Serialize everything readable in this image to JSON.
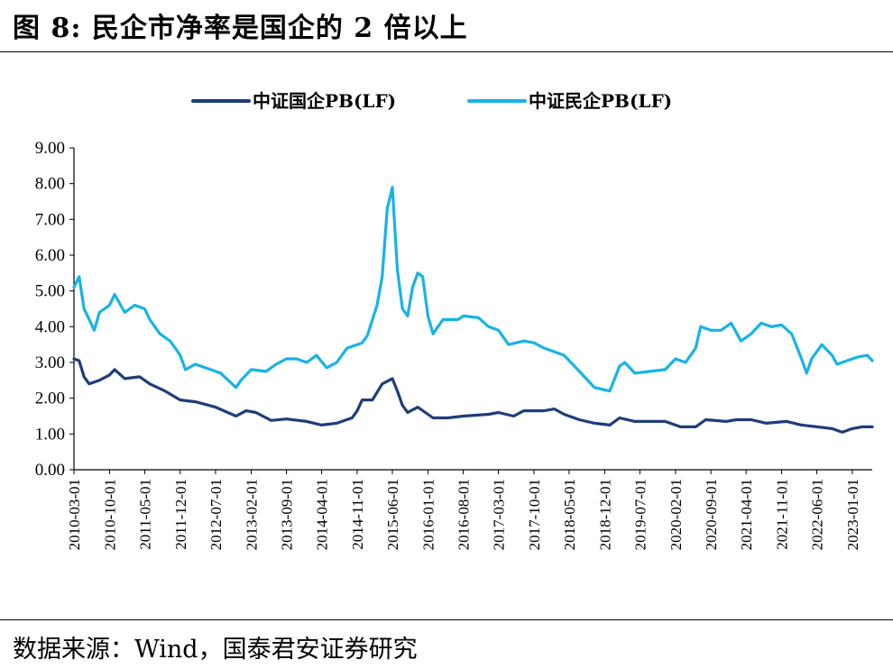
{
  "header": {
    "title": "图 8:  民企市净率是国企的 2 倍以上"
  },
  "footer": {
    "source": "数据来源：Wind，国泰君安证券研究"
  },
  "chart_data": {
    "type": "line",
    "ylim": [
      0,
      9
    ],
    "y_ticks": [
      "0.00",
      "1.00",
      "2.00",
      "3.00",
      "4.00",
      "5.00",
      "6.00",
      "7.00",
      "8.00",
      "9.00"
    ],
    "x_ticks": [
      "2010-03-01",
      "2010-10-01",
      "2011-05-01",
      "2011-12-01",
      "2012-07-01",
      "2013-02-01",
      "2013-09-01",
      "2014-04-01",
      "2014-11-01",
      "2015-06-01",
      "2016-01-01",
      "2016-08-01",
      "2017-03-01",
      "2017-10-01",
      "2018-05-01",
      "2018-12-01",
      "2019-07-01",
      "2020-02-01",
      "2020-09-01",
      "2021-04-01",
      "2021-11-01",
      "2022-06-01",
      "2023-01-01"
    ],
    "x_start": "2010-03-01",
    "x_end": "2023-05-01",
    "legend_position": "top",
    "series": [
      {
        "name": "中证国企PB(LF)",
        "color": "#1f3d7a",
        "points": [
          [
            "2010-03-01",
            3.1
          ],
          [
            "2010-04-01",
            3.05
          ],
          [
            "2010-05-01",
            2.6
          ],
          [
            "2010-06-01",
            2.4
          ],
          [
            "2010-08-01",
            2.5
          ],
          [
            "2010-10-01",
            2.65
          ],
          [
            "2010-11-01",
            2.8
          ],
          [
            "2011-01-01",
            2.55
          ],
          [
            "2011-04-01",
            2.6
          ],
          [
            "2011-06-01",
            2.4
          ],
          [
            "2011-09-01",
            2.2
          ],
          [
            "2011-12-01",
            1.95
          ],
          [
            "2012-03-01",
            1.9
          ],
          [
            "2012-07-01",
            1.75
          ],
          [
            "2012-11-01",
            1.5
          ],
          [
            "2013-01-01",
            1.65
          ],
          [
            "2013-03-01",
            1.6
          ],
          [
            "2013-06-01",
            1.38
          ],
          [
            "2013-09-01",
            1.42
          ],
          [
            "2014-01-01",
            1.35
          ],
          [
            "2014-04-01",
            1.25
          ],
          [
            "2014-07-01",
            1.3
          ],
          [
            "2014-10-01",
            1.45
          ],
          [
            "2014-11-01",
            1.65
          ],
          [
            "2014-12-01",
            1.95
          ],
          [
            "2015-02-01",
            1.95
          ],
          [
            "2015-04-01",
            2.4
          ],
          [
            "2015-06-01",
            2.55
          ],
          [
            "2015-07-01",
            2.2
          ],
          [
            "2015-08-01",
            1.8
          ],
          [
            "2015-09-01",
            1.6
          ],
          [
            "2015-11-01",
            1.75
          ],
          [
            "2016-01-01",
            1.55
          ],
          [
            "2016-02-01",
            1.45
          ],
          [
            "2016-05-01",
            1.45
          ],
          [
            "2016-08-01",
            1.5
          ],
          [
            "2017-01-01",
            1.55
          ],
          [
            "2017-03-01",
            1.6
          ],
          [
            "2017-06-01",
            1.5
          ],
          [
            "2017-08-01",
            1.65
          ],
          [
            "2017-12-01",
            1.65
          ],
          [
            "2018-02-01",
            1.7
          ],
          [
            "2018-04-01",
            1.55
          ],
          [
            "2018-07-01",
            1.4
          ],
          [
            "2018-10-01",
            1.3
          ],
          [
            "2019-01-01",
            1.25
          ],
          [
            "2019-03-01",
            1.45
          ],
          [
            "2019-06-01",
            1.35
          ],
          [
            "2019-12-01",
            1.35
          ],
          [
            "2020-03-01",
            1.2
          ],
          [
            "2020-06-01",
            1.2
          ],
          [
            "2020-08-01",
            1.4
          ],
          [
            "2020-12-01",
            1.35
          ],
          [
            "2021-02-01",
            1.4
          ],
          [
            "2021-05-01",
            1.4
          ],
          [
            "2021-08-01",
            1.3
          ],
          [
            "2021-12-01",
            1.35
          ],
          [
            "2022-03-01",
            1.25
          ],
          [
            "2022-06-01",
            1.2
          ],
          [
            "2022-09-01",
            1.15
          ],
          [
            "2022-11-01",
            1.05
          ],
          [
            "2023-01-01",
            1.15
          ],
          [
            "2023-03-01",
            1.2
          ],
          [
            "2023-05-01",
            1.2
          ]
        ]
      },
      {
        "name": "中证民企PB(LF)",
        "color": "#17b3e8",
        "points": [
          [
            "2010-03-01",
            5.1
          ],
          [
            "2010-04-01",
            5.4
          ],
          [
            "2010-05-01",
            4.5
          ],
          [
            "2010-06-01",
            4.2
          ],
          [
            "2010-07-01",
            3.9
          ],
          [
            "2010-08-01",
            4.4
          ],
          [
            "2010-10-01",
            4.6
          ],
          [
            "2010-11-01",
            4.9
          ],
          [
            "2011-01-01",
            4.4
          ],
          [
            "2011-03-01",
            4.6
          ],
          [
            "2011-05-01",
            4.5
          ],
          [
            "2011-06-01",
            4.2
          ],
          [
            "2011-08-01",
            3.8
          ],
          [
            "2011-10-01",
            3.6
          ],
          [
            "2011-12-01",
            3.2
          ],
          [
            "2012-01-01",
            2.8
          ],
          [
            "2012-03-01",
            2.95
          ],
          [
            "2012-05-01",
            2.85
          ],
          [
            "2012-08-01",
            2.7
          ],
          [
            "2012-11-01",
            2.3
          ],
          [
            "2012-12-01",
            2.5
          ],
          [
            "2013-02-01",
            2.8
          ],
          [
            "2013-05-01",
            2.75
          ],
          [
            "2013-07-01",
            2.95
          ],
          [
            "2013-09-01",
            3.1
          ],
          [
            "2013-11-01",
            3.1
          ],
          [
            "2014-01-01",
            3.0
          ],
          [
            "2014-03-01",
            3.2
          ],
          [
            "2014-05-01",
            2.85
          ],
          [
            "2014-07-01",
            3.0
          ],
          [
            "2014-09-01",
            3.4
          ],
          [
            "2014-11-01",
            3.5
          ],
          [
            "2014-12-01",
            3.55
          ],
          [
            "2015-01-01",
            3.75
          ],
          [
            "2015-03-01",
            4.6
          ],
          [
            "2015-04-01",
            5.4
          ],
          [
            "2015-05-01",
            7.3
          ],
          [
            "2015-06-01",
            7.9
          ],
          [
            "2015-07-01",
            5.6
          ],
          [
            "2015-08-01",
            4.5
          ],
          [
            "2015-09-01",
            4.3
          ],
          [
            "2015-10-01",
            5.1
          ],
          [
            "2015-11-01",
            5.5
          ],
          [
            "2015-12-01",
            5.4
          ],
          [
            "2016-01-01",
            4.3
          ],
          [
            "2016-02-01",
            3.8
          ],
          [
            "2016-04-01",
            4.2
          ],
          [
            "2016-07-01",
            4.2
          ],
          [
            "2016-08-01",
            4.3
          ],
          [
            "2016-11-01",
            4.25
          ],
          [
            "2017-01-01",
            4.0
          ],
          [
            "2017-03-01",
            3.9
          ],
          [
            "2017-05-01",
            3.5
          ],
          [
            "2017-08-01",
            3.6
          ],
          [
            "2017-10-01",
            3.55
          ],
          [
            "2017-12-01",
            3.4
          ],
          [
            "2018-02-01",
            3.3
          ],
          [
            "2018-04-01",
            3.2
          ],
          [
            "2018-06-01",
            2.9
          ],
          [
            "2018-08-01",
            2.6
          ],
          [
            "2018-10-01",
            2.3
          ],
          [
            "2019-01-01",
            2.2
          ],
          [
            "2019-03-01",
            2.9
          ],
          [
            "2019-04-01",
            3.0
          ],
          [
            "2019-06-01",
            2.7
          ],
          [
            "2019-09-01",
            2.75
          ],
          [
            "2019-12-01",
            2.8
          ],
          [
            "2020-02-01",
            3.1
          ],
          [
            "2020-04-01",
            3.0
          ],
          [
            "2020-06-01",
            3.4
          ],
          [
            "2020-07-01",
            4.0
          ],
          [
            "2020-09-01",
            3.9
          ],
          [
            "2020-11-01",
            3.9
          ],
          [
            "2021-01-01",
            4.1
          ],
          [
            "2021-03-01",
            3.6
          ],
          [
            "2021-05-01",
            3.8
          ],
          [
            "2021-07-01",
            4.1
          ],
          [
            "2021-09-01",
            4.0
          ],
          [
            "2021-11-01",
            4.05
          ],
          [
            "2022-01-01",
            3.8
          ],
          [
            "2022-03-01",
            3.1
          ],
          [
            "2022-04-01",
            2.7
          ],
          [
            "2022-05-01",
            3.1
          ],
          [
            "2022-07-01",
            3.5
          ],
          [
            "2022-09-01",
            3.2
          ],
          [
            "2022-10-01",
            2.95
          ],
          [
            "2022-12-01",
            3.05
          ],
          [
            "2023-02-01",
            3.15
          ],
          [
            "2023-04-01",
            3.2
          ],
          [
            "2023-05-01",
            3.05
          ]
        ]
      }
    ]
  }
}
